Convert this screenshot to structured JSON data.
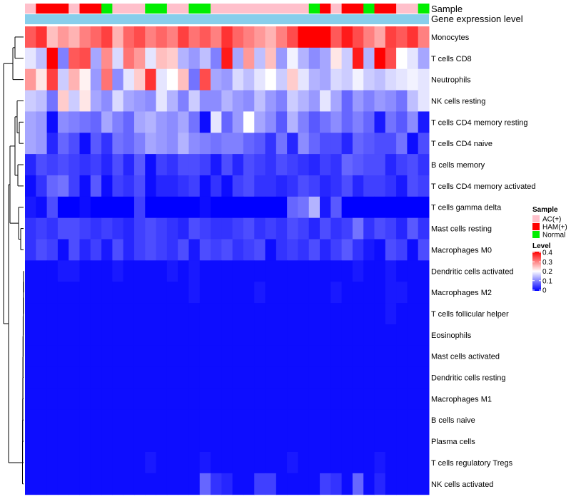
{
  "chart_data": {
    "type": "heatmap",
    "title": "",
    "annotation_labels": [
      "Sample",
      "Gene expression level"
    ],
    "rows": [
      "Monocytes",
      "T cells CD8",
      "Neutrophils",
      "NK cells resting",
      "T cells CD4 memory resting",
      "T cells CD4 naive",
      "B cells memory",
      "T cells CD4 memory activated",
      "T cells gamma delta",
      "Mast cells resting",
      "Macrophages M0",
      "Dendritic cells activated",
      "Macrophages M2",
      "T cells follicular helper",
      "Eosinophils",
      "Mast cells activated",
      "Dendritic cells resting",
      "Macrophages M1",
      "B cells naive",
      "Plasma cells",
      "T cells regulatory  Tregs",
      "NK cells activated"
    ],
    "samples": [
      "AC(+)",
      "HAM(+)",
      "HAM(+)",
      "HAM(+)",
      "AC(+)",
      "HAM(+)",
      "HAM(+)",
      "Normal",
      "AC(+)",
      "AC(+)",
      "AC(+)",
      "Normal",
      "Normal",
      "AC(+)",
      "AC(+)",
      "Normal",
      "Normal",
      "AC(+)",
      "AC(+)",
      "AC(+)",
      "AC(+)",
      "AC(+)",
      "AC(+)",
      "AC(+)",
      "AC(+)",
      "AC(+)",
      "Normal",
      "HAM(+)",
      "AC(+)",
      "HAM(+)",
      "HAM(+)",
      "Normal",
      "HAM(+)",
      "HAM(+)",
      "AC(+)",
      "AC(+)",
      "Normal"
    ],
    "values": [
      [
        0.33,
        0.36,
        0.25,
        0.28,
        0.26,
        0.3,
        0.32,
        0.35,
        0.26,
        0.32,
        0.34,
        0.3,
        0.32,
        0.3,
        0.35,
        0.31,
        0.33,
        0.3,
        0.36,
        0.32,
        0.3,
        0.28,
        0.26,
        0.3,
        0.34,
        0.4,
        0.4,
        0.4,
        0.33,
        0.38,
        0.34,
        0.3,
        0.27,
        0.35,
        0.33,
        0.36,
        0.3
      ],
      [
        0.18,
        0.15,
        0.4,
        0.1,
        0.33,
        0.34,
        0.13,
        0.29,
        0.17,
        0.31,
        0.28,
        0.18,
        0.25,
        0.24,
        0.14,
        0.12,
        0.15,
        0.1,
        0.38,
        0.13,
        0.28,
        0.15,
        0.25,
        0.12,
        0.19,
        0.14,
        0.11,
        0.13,
        0.22,
        0.16,
        0.38,
        0.14,
        0.4,
        0.34,
        0.2,
        0.18,
        0.13
      ],
      [
        0.28,
        0.22,
        0.35,
        0.16,
        0.26,
        0.21,
        0.12,
        0.31,
        0.11,
        0.18,
        0.24,
        0.36,
        0.18,
        0.2,
        0.25,
        0.09,
        0.34,
        0.13,
        0.12,
        0.17,
        0.15,
        0.18,
        0.2,
        0.16,
        0.24,
        0.18,
        0.14,
        0.13,
        0.17,
        0.16,
        0.19,
        0.16,
        0.15,
        0.17,
        0.18,
        0.19,
        0.18
      ],
      [
        0.16,
        0.15,
        0.09,
        0.24,
        0.16,
        0.22,
        0.13,
        0.11,
        0.17,
        0.13,
        0.12,
        0.11,
        0.18,
        0.14,
        0.1,
        0.16,
        0.11,
        0.11,
        0.14,
        0.12,
        0.11,
        0.15,
        0.12,
        0.1,
        0.16,
        0.14,
        0.12,
        0.18,
        0.13,
        0.08,
        0.12,
        0.1,
        0.12,
        0.11,
        0.09,
        0.15,
        0.18
      ],
      [
        0.13,
        0.12,
        0.01,
        0.11,
        0.1,
        0.09,
        0.08,
        0.13,
        0.1,
        0.08,
        0.13,
        0.14,
        0.12,
        0.11,
        0.13,
        0.09,
        0.01,
        0.18,
        0.08,
        0.12,
        0.2,
        0.13,
        0.11,
        0.07,
        0.14,
        0.1,
        0.07,
        0.09,
        0.11,
        0.08,
        0.1,
        0.08,
        0.02,
        0.09,
        0.07,
        0.11,
        0.02
      ],
      [
        0.13,
        0.12,
        0.03,
        0.08,
        0.06,
        0.01,
        0.07,
        0.04,
        0.09,
        0.08,
        0.1,
        0.13,
        0.12,
        0.11,
        0.14,
        0.11,
        0.1,
        0.09,
        0.1,
        0.1,
        0.08,
        0.07,
        0.04,
        0.09,
        0.03,
        0.11,
        0.08,
        0.06,
        0.06,
        0.03,
        0.08,
        0.07,
        0.06,
        0.06,
        0.09,
        0.01,
        0.06
      ],
      [
        0.03,
        0.06,
        0.05,
        0.06,
        0.05,
        0.04,
        0.05,
        0.03,
        0.06,
        0.03,
        0.07,
        0.01,
        0.05,
        0.04,
        0.06,
        0.06,
        0.05,
        0.02,
        0.06,
        0.03,
        0.06,
        0.05,
        0.04,
        0.06,
        0.05,
        0.04,
        0.03,
        0.05,
        0.04,
        0.08,
        0.07,
        0.06,
        0.06,
        0.03,
        0.05,
        0.06,
        0.04
      ],
      [
        0.01,
        0.04,
        0.08,
        0.09,
        0.05,
        0.01,
        0.07,
        0.01,
        0.05,
        0.04,
        0.06,
        0.01,
        0.03,
        0.03,
        0.04,
        0.05,
        0.01,
        0.04,
        0.01,
        0.05,
        0.06,
        0.04,
        0.04,
        0.03,
        0.04,
        0.06,
        0.05,
        0.03,
        0.04,
        0.06,
        0.03,
        0.05,
        0.05,
        0.04,
        0.02,
        0.06,
        0.05
      ],
      [
        0.02,
        0.01,
        0.06,
        0.0,
        0.0,
        0.01,
        0.0,
        0.0,
        0.0,
        0.0,
        0.05,
        0.0,
        0.0,
        0.0,
        0.0,
        0.0,
        0.01,
        0.0,
        0.0,
        0.0,
        0.0,
        0.0,
        0.0,
        0.0,
        0.08,
        0.09,
        0.14,
        0.02,
        0.07,
        0.0,
        0.0,
        0.0,
        0.0,
        0.0,
        0.0,
        0.0,
        0.0
      ],
      [
        0.04,
        0.05,
        0.04,
        0.06,
        0.06,
        0.05,
        0.04,
        0.05,
        0.04,
        0.03,
        0.05,
        0.06,
        0.05,
        0.04,
        0.03,
        0.06,
        0.05,
        0.04,
        0.04,
        0.05,
        0.06,
        0.04,
        0.05,
        0.04,
        0.06,
        0.05,
        0.03,
        0.06,
        0.04,
        0.05,
        0.09,
        0.04,
        0.06,
        0.05,
        0.03,
        0.07,
        0.04
      ],
      [
        0.04,
        0.06,
        0.05,
        0.01,
        0.06,
        0.03,
        0.05,
        0.02,
        0.06,
        0.03,
        0.05,
        0.06,
        0.05,
        0.04,
        0.06,
        0.02,
        0.06,
        0.05,
        0.06,
        0.04,
        0.05,
        0.06,
        0.01,
        0.04,
        0.05,
        0.04,
        0.06,
        0.03,
        0.05,
        0.07,
        0.04,
        0.02,
        0.01,
        0.06,
        0.05,
        0.01,
        0.06
      ],
      [
        0.01,
        0.01,
        0.01,
        0.02,
        0.02,
        0.01,
        0.01,
        0.01,
        0.02,
        0.01,
        0.01,
        0.01,
        0.01,
        0.02,
        0.01,
        0.02,
        0.01,
        0.01,
        0.01,
        0.01,
        0.01,
        0.01,
        0.01,
        0.01,
        0.01,
        0.01,
        0.01,
        0.01,
        0.01,
        0.01,
        0.02,
        0.01,
        0.01,
        0.02,
        0.01,
        0.01,
        0.01
      ],
      [
        0.01,
        0.01,
        0.01,
        0.01,
        0.01,
        0.01,
        0.01,
        0.01,
        0.01,
        0.01,
        0.01,
        0.01,
        0.01,
        0.01,
        0.01,
        0.02,
        0.01,
        0.01,
        0.01,
        0.01,
        0.01,
        0.02,
        0.01,
        0.01,
        0.01,
        0.01,
        0.01,
        0.01,
        0.02,
        0.01,
        0.01,
        0.01,
        0.01,
        0.02,
        0.02,
        0.01,
        0.01
      ],
      [
        0.01,
        0.01,
        0.01,
        0.01,
        0.01,
        0.01,
        0.01,
        0.01,
        0.01,
        0.01,
        0.01,
        0.01,
        0.01,
        0.01,
        0.01,
        0.01,
        0.01,
        0.01,
        0.01,
        0.01,
        0.01,
        0.01,
        0.01,
        0.01,
        0.01,
        0.01,
        0.01,
        0.01,
        0.01,
        0.01,
        0.01,
        0.01,
        0.01,
        0.02,
        0.01,
        0.01,
        0.01
      ],
      [
        0.01,
        0.01,
        0.01,
        0.01,
        0.01,
        0.01,
        0.01,
        0.01,
        0.01,
        0.01,
        0.01,
        0.01,
        0.01,
        0.01,
        0.01,
        0.01,
        0.01,
        0.01,
        0.01,
        0.01,
        0.01,
        0.01,
        0.01,
        0.01,
        0.01,
        0.01,
        0.01,
        0.01,
        0.01,
        0.01,
        0.01,
        0.01,
        0.01,
        0.01,
        0.01,
        0.01,
        0.01
      ],
      [
        0.01,
        0.01,
        0.01,
        0.01,
        0.01,
        0.01,
        0.01,
        0.01,
        0.01,
        0.01,
        0.01,
        0.01,
        0.01,
        0.01,
        0.01,
        0.01,
        0.01,
        0.01,
        0.01,
        0.01,
        0.01,
        0.01,
        0.01,
        0.01,
        0.01,
        0.01,
        0.01,
        0.01,
        0.01,
        0.01,
        0.01,
        0.01,
        0.01,
        0.01,
        0.01,
        0.01,
        0.01
      ],
      [
        0.01,
        0.01,
        0.01,
        0.01,
        0.01,
        0.01,
        0.01,
        0.01,
        0.01,
        0.01,
        0.01,
        0.01,
        0.01,
        0.01,
        0.01,
        0.01,
        0.01,
        0.01,
        0.01,
        0.01,
        0.01,
        0.01,
        0.01,
        0.01,
        0.01,
        0.01,
        0.01,
        0.01,
        0.01,
        0.01,
        0.01,
        0.01,
        0.01,
        0.01,
        0.01,
        0.01,
        0.01
      ],
      [
        0.01,
        0.01,
        0.01,
        0.01,
        0.01,
        0.01,
        0.01,
        0.01,
        0.01,
        0.01,
        0.01,
        0.01,
        0.01,
        0.01,
        0.01,
        0.01,
        0.01,
        0.01,
        0.01,
        0.01,
        0.01,
        0.01,
        0.01,
        0.01,
        0.01,
        0.01,
        0.01,
        0.01,
        0.01,
        0.01,
        0.01,
        0.01,
        0.01,
        0.01,
        0.01,
        0.01,
        0.01
      ],
      [
        0.01,
        0.01,
        0.01,
        0.01,
        0.01,
        0.01,
        0.01,
        0.01,
        0.01,
        0.01,
        0.01,
        0.01,
        0.01,
        0.01,
        0.01,
        0.01,
        0.01,
        0.01,
        0.01,
        0.01,
        0.01,
        0.01,
        0.01,
        0.01,
        0.01,
        0.01,
        0.01,
        0.01,
        0.01,
        0.01,
        0.01,
        0.01,
        0.01,
        0.01,
        0.01,
        0.01,
        0.01
      ],
      [
        0.01,
        0.01,
        0.01,
        0.01,
        0.01,
        0.01,
        0.01,
        0.01,
        0.01,
        0.01,
        0.01,
        0.01,
        0.01,
        0.01,
        0.01,
        0.01,
        0.01,
        0.01,
        0.01,
        0.01,
        0.01,
        0.01,
        0.01,
        0.01,
        0.01,
        0.01,
        0.01,
        0.01,
        0.01,
        0.01,
        0.01,
        0.01,
        0.01,
        0.01,
        0.01,
        0.01,
        0.01
      ],
      [
        0.01,
        0.01,
        0.01,
        0.01,
        0.01,
        0.01,
        0.01,
        0.01,
        0.01,
        0.01,
        0.01,
        0.02,
        0.01,
        0.01,
        0.01,
        0.01,
        0.02,
        0.01,
        0.01,
        0.01,
        0.01,
        0.01,
        0.01,
        0.01,
        0.02,
        0.01,
        0.01,
        0.01,
        0.01,
        0.01,
        0.01,
        0.01,
        0.02,
        0.01,
        0.01,
        0.01,
        0.01
      ],
      [
        0.01,
        0.01,
        0.01,
        0.01,
        0.01,
        0.01,
        0.01,
        0.01,
        0.01,
        0.01,
        0.01,
        0.01,
        0.01,
        0.01,
        0.01,
        0.01,
        0.08,
        0.04,
        0.03,
        0.01,
        0.01,
        0.05,
        0.05,
        0.01,
        0.01,
        0.01,
        0.01,
        0.05,
        0.04,
        0.01,
        0.08,
        0.01,
        0.03,
        0.01,
        0.01,
        0.01,
        0.01
      ]
    ],
    "legend_sample": {
      "title": "Sample",
      "entries": [
        {
          "label": "AC(+)",
          "color": "#ffc0cb"
        },
        {
          "label": "HAM(+)",
          "color": "#ff0000"
        },
        {
          "label": "Normal",
          "color": "#00ee00"
        }
      ]
    },
    "legend_level": {
      "title": "Level",
      "ticks": [
        "0.4",
        "0.3",
        "0.2",
        "0.1",
        "0"
      ],
      "range": [
        0,
        0.4
      ]
    },
    "colors": {
      "low": "#0000ff",
      "mid": "#ffffff",
      "high": "#ff0000",
      "expression_bar": "#87ceeb",
      "dendrogram": "#000000"
    }
  }
}
